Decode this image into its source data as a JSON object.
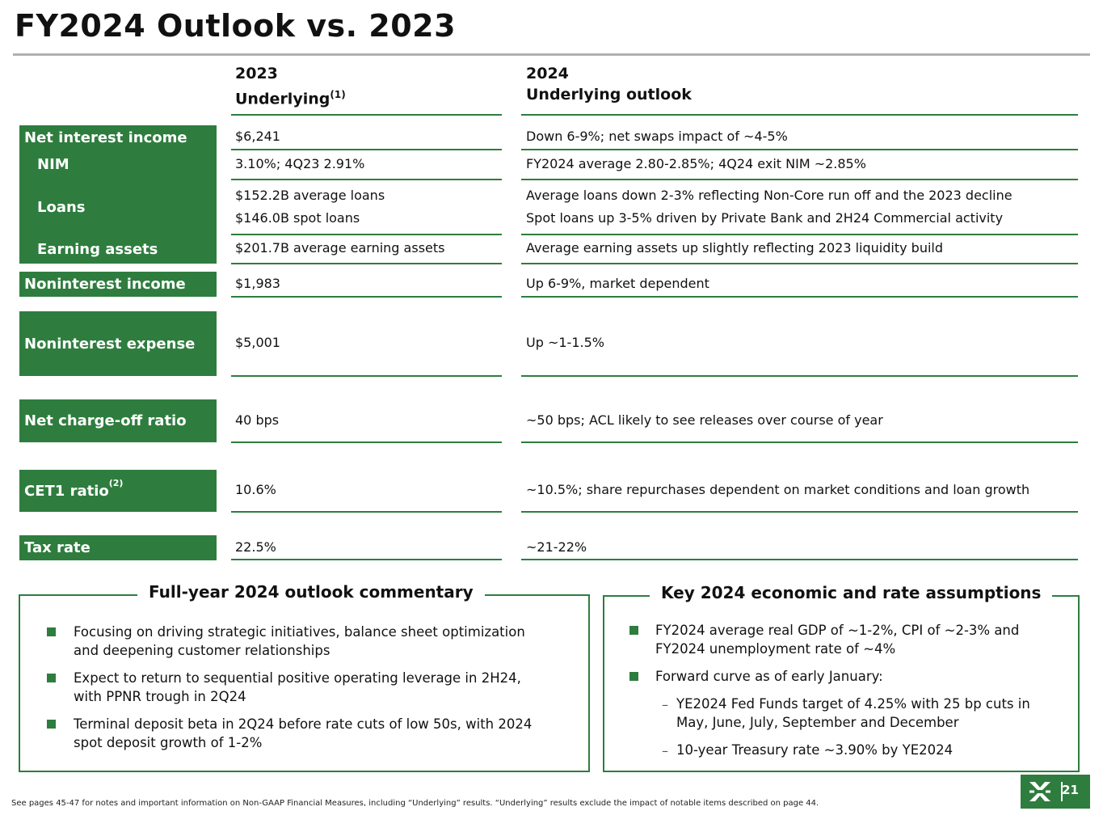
{
  "title": "FY2024 Outlook vs. 2023",
  "columns": {
    "col2023_line1": "2023",
    "col2023_line2": "Underlying",
    "col2023_sup": "(1)",
    "col2024_line1": "2024",
    "col2024_line2": "Underlying outlook"
  },
  "rows": {
    "nii": {
      "label": "Net interest income",
      "v2023": "$6,241",
      "v2024": "Down 6-9%; net swaps impact of ~4-5%"
    },
    "nim": {
      "label": "NIM",
      "v2023": "3.10%; 4Q23 2.91%",
      "v2024": "FY2024 average 2.80-2.85%; 4Q24 exit NIM ~2.85%"
    },
    "loans": {
      "label": "Loans",
      "v2023_a": "$152.2B average loans",
      "v2023_b": "$146.0B spot loans",
      "v2024_a": "Average loans down 2-3% reflecting Non-Core run off and the 2023 decline",
      "v2024_b": "Spot loans up 3-5% driven by Private Bank and 2H24 Commercial activity"
    },
    "earning": {
      "label": "Earning assets",
      "v2023": "$201.7B average earning assets",
      "v2024": "Average earning assets up slightly reflecting 2023 liquidity build"
    },
    "nonint_income": {
      "label": "Noninterest income",
      "v2023": "$1,983",
      "v2024": "Up 6-9%, market dependent"
    },
    "nonint_expense": {
      "label": "Noninterest expense",
      "v2023": "$5,001",
      "v2024": "Up ~1-1.5%"
    },
    "nco": {
      "label": "Net charge-off ratio",
      "v2023": "40 bps",
      "v2024": "~50 bps; ACL likely to see releases over course of year"
    },
    "cet1": {
      "label": "CET1 ratio",
      "sup": "(2)",
      "v2023": "10.6%",
      "v2024": "~10.5%; share repurchases dependent on market conditions and loan growth"
    },
    "tax": {
      "label": "Tax rate",
      "v2023": "22.5%",
      "v2024": "~21-22%"
    }
  },
  "commentary": {
    "title": "Full-year 2024 outlook commentary",
    "bullets": [
      {
        "l1": "Focusing on driving strategic initiatives, balance sheet optimization",
        "l2": "and deepening customer relationships"
      },
      {
        "l1": "Expect to return to sequential positive operating leverage in 2H24,",
        "l2": "with PPNR trough in 2Q24"
      },
      {
        "l1": "Terminal deposit beta in 2Q24 before rate cuts of low 50s, with 2024",
        "l2": "spot deposit growth of 1-2%"
      }
    ]
  },
  "assumptions": {
    "title": "Key 2024 economic and rate assumptions",
    "bullets": [
      {
        "l1": "FY2024 average real GDP of ~1-2%, CPI of ~2-3% and",
        "l2": "FY2024 unemployment rate of ~4%"
      },
      {
        "l1": "Forward curve as of early January:"
      }
    ],
    "subs": [
      {
        "l1": "YE2024 Fed Funds target of 4.25% with 25 bp cuts in",
        "l2": "May, June, July, September and December"
      },
      {
        "l1": "10-year Treasury rate ~3.90% by YE2024"
      }
    ],
    "dash": "–"
  },
  "footnote": "See pages 45-47 for notes and important information on Non-GAAP Financial Measures, including “Underlying” results. “Underlying” results exclude the impact of notable items described on page 44.",
  "page_number": "21",
  "colors": {
    "brand_green": "#2e7d3e"
  },
  "logo_icon": "citizens-logo-icon"
}
